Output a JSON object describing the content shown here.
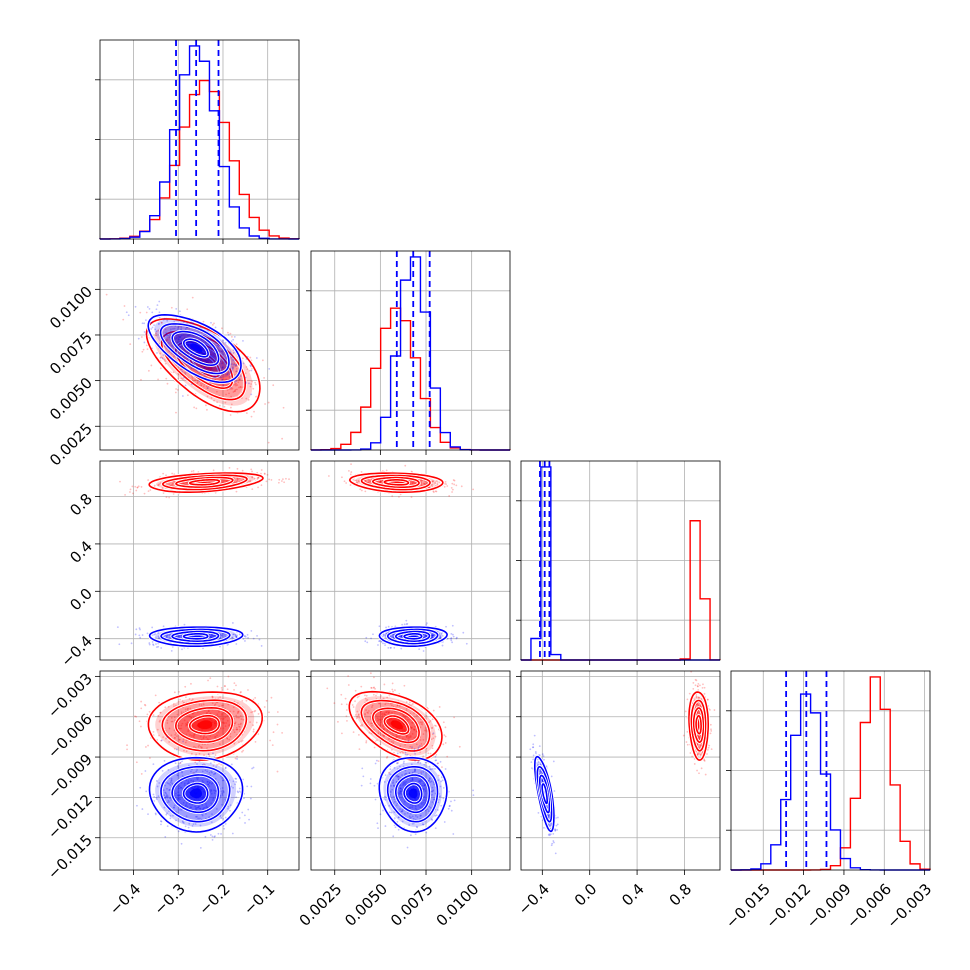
{
  "chart_data": {
    "type": "corner",
    "grid": true,
    "legend": "none",
    "colors": {
      "series_a": "#ff0000",
      "series_b": "#0000ff"
    },
    "parameters": [
      {
        "range": [
          -0.475,
          -0.03
        ],
        "ticks": [
          -0.4,
          -0.3,
          -0.2,
          -0.1
        ],
        "tick_labels": [
          "−0.4",
          "−0.3",
          "−0.2",
          "−0.1"
        ],
        "blue": {
          "mean": -0.26,
          "sd": 0.045,
          "quantiles": [
            -0.305,
            -0.26,
            -0.21
          ]
        },
        "red": {
          "mean": -0.24,
          "sd": 0.055
        }
      },
      {
        "range": [
          0.0012,
          0.0121
        ],
        "ticks": [
          0.0025,
          0.005,
          0.0075,
          0.01
        ],
        "tick_labels": [
          "0.0025",
          "0.0050",
          "0.0075",
          "0.0100"
        ],
        "blue": {
          "mean": 0.0068,
          "sd": 0.0008,
          "quantiles": [
            0.0059,
            0.0068,
            0.0077
          ]
        },
        "red": {
          "mean": 0.0059,
          "sd": 0.0011
        }
      },
      {
        "range": [
          -0.58,
          1.1
        ],
        "ticks": [
          -0.4,
          0.0,
          0.4,
          0.8
        ],
        "tick_labels": [
          "−0.4",
          "0.0",
          "0.4",
          "0.8"
        ],
        "blue": {
          "mean": -0.38,
          "sd": 0.035,
          "quantiles": [
            -0.42,
            -0.38,
            -0.34
          ]
        },
        "red": {
          "mean": 0.92,
          "sd": 0.035
        }
      },
      {
        "range": [
          -0.0174,
          -0.0026
        ],
        "ticks": [
          -0.015,
          -0.012,
          -0.009,
          -0.006,
          -0.003
        ],
        "tick_labels": [
          "−0.015",
          "−0.012",
          "−0.009",
          "−0.006",
          "−0.003"
        ],
        "blue": {
          "mean": -0.0117,
          "sd": 0.0012,
          "quantiles": [
            -0.0133,
            -0.0118,
            -0.0103
          ]
        },
        "red": {
          "mean": -0.0066,
          "sd": 0.0011
        }
      }
    ],
    "correlations": {
      "1-0": {
        "blue": -0.6,
        "red": -0.6
      },
      "2-0": {
        "blue": 0.05,
        "red": 0.35
      },
      "2-1": {
        "blue": 0.05,
        "red": -0.15
      },
      "3-0": {
        "blue": 0.0,
        "red": 0.1
      },
      "3-1": {
        "blue": -0.05,
        "red": -0.45
      },
      "3-2": {
        "blue": -0.7,
        "red": -0.1
      }
    }
  }
}
